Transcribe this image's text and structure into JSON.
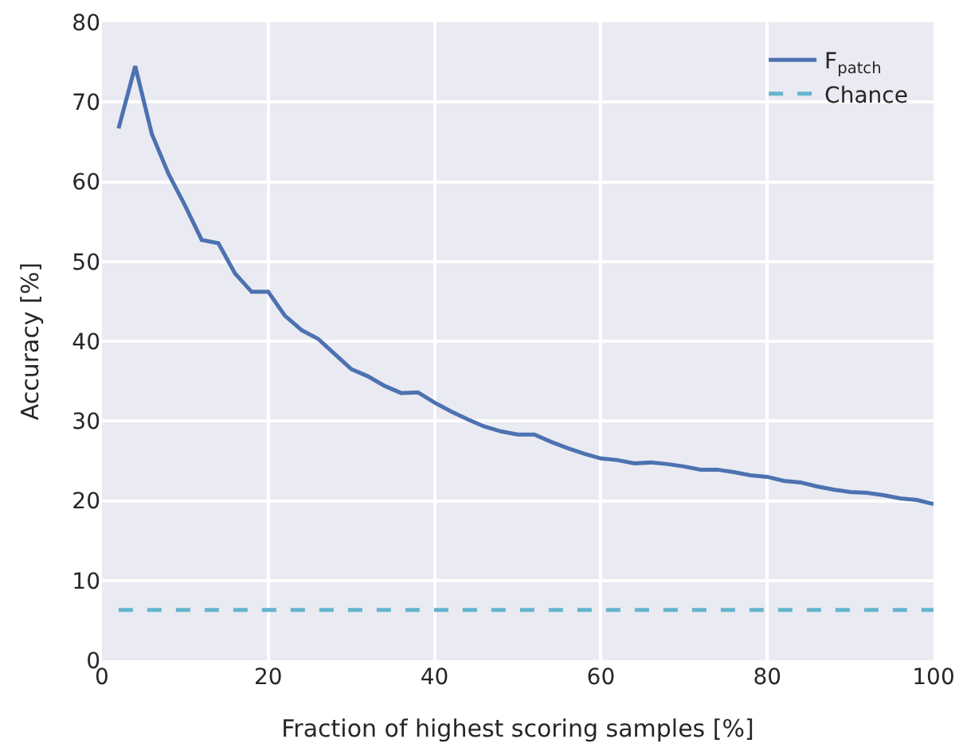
{
  "chart_data": {
    "type": "line",
    "xlabel": "Fraction of highest scoring samples [%]",
    "ylabel": "Accuracy [%]",
    "x": [
      2,
      4,
      6,
      8,
      10,
      12,
      14,
      16,
      18,
      20,
      22,
      24,
      26,
      28,
      30,
      32,
      34,
      36,
      38,
      40,
      42,
      44,
      46,
      48,
      50,
      52,
      54,
      56,
      58,
      60,
      62,
      64,
      66,
      68,
      70,
      72,
      74,
      76,
      78,
      80,
      82,
      84,
      86,
      88,
      90,
      92,
      94,
      96,
      98,
      100
    ],
    "series": [
      {
        "name": "F$_{patch}$",
        "color": "#4c72b0",
        "values": [
          66.7,
          74.5,
          66,
          61,
          57,
          52.7,
          52.3,
          48.5,
          46.2,
          46.2,
          43.2,
          41.4,
          40.3,
          38.4,
          36.5,
          35.6,
          34.4,
          33.5,
          33.6,
          32.3,
          31.2,
          30.2,
          29.3,
          28.7,
          28.3,
          28.3,
          27.4,
          26.6,
          25.9,
          25.3,
          25.1,
          24.7,
          24.8,
          24.6,
          24.3,
          23.9,
          23.9,
          23.6,
          23.2,
          23.0,
          22.5,
          22.3,
          21.8,
          21.4,
          21.1,
          21.0,
          20.7,
          20.3,
          20.1,
          19.6
        ]
      },
      {
        "name": "Chance",
        "color": "#64b5cd",
        "line_style": "dashed",
        "x": [
          2,
          100
        ],
        "values": [
          6.3,
          6.3
        ]
      }
    ],
    "xlim": [
      0,
      100
    ],
    "xticks": [
      0,
      20,
      40,
      60,
      80,
      100
    ],
    "ylim": [
      0,
      80
    ],
    "yticks": [
      0,
      10,
      20,
      30,
      40,
      50,
      60,
      70,
      80
    ],
    "grid": true,
    "legend": "top right",
    "line_style": "solid",
    "marker": "none"
  }
}
